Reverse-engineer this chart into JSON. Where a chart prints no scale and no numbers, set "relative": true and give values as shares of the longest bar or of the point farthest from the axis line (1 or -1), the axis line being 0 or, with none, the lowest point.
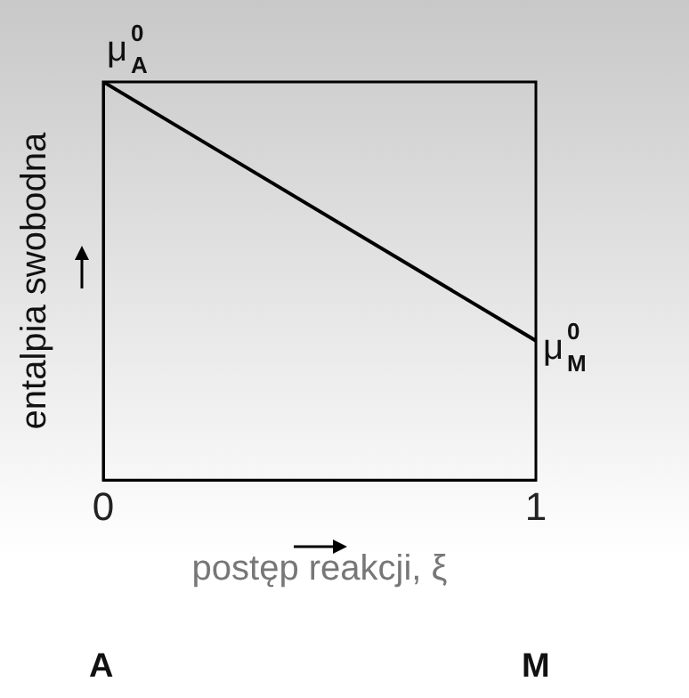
{
  "chart_data": {
    "type": "line",
    "relative": true,
    "xlabel": "postęp reakcji, ξ",
    "ylabel": "entalpia swobodna",
    "x": [
      0,
      1
    ],
    "xlim": [
      0,
      1
    ],
    "xticks": [
      0,
      1
    ],
    "series": [
      {
        "color": "#000000",
        "values": [
          1,
          0.35
        ]
      }
    ],
    "annotations": [
      {
        "text": "μ$^{0}$$_{A}$",
        "x": 0,
        "y": 1
      },
      {
        "text": "μ$^{0}$$_{M}$",
        "x": 1,
        "y": 0.35
      },
      "A",
      "M"
    ]
  }
}
